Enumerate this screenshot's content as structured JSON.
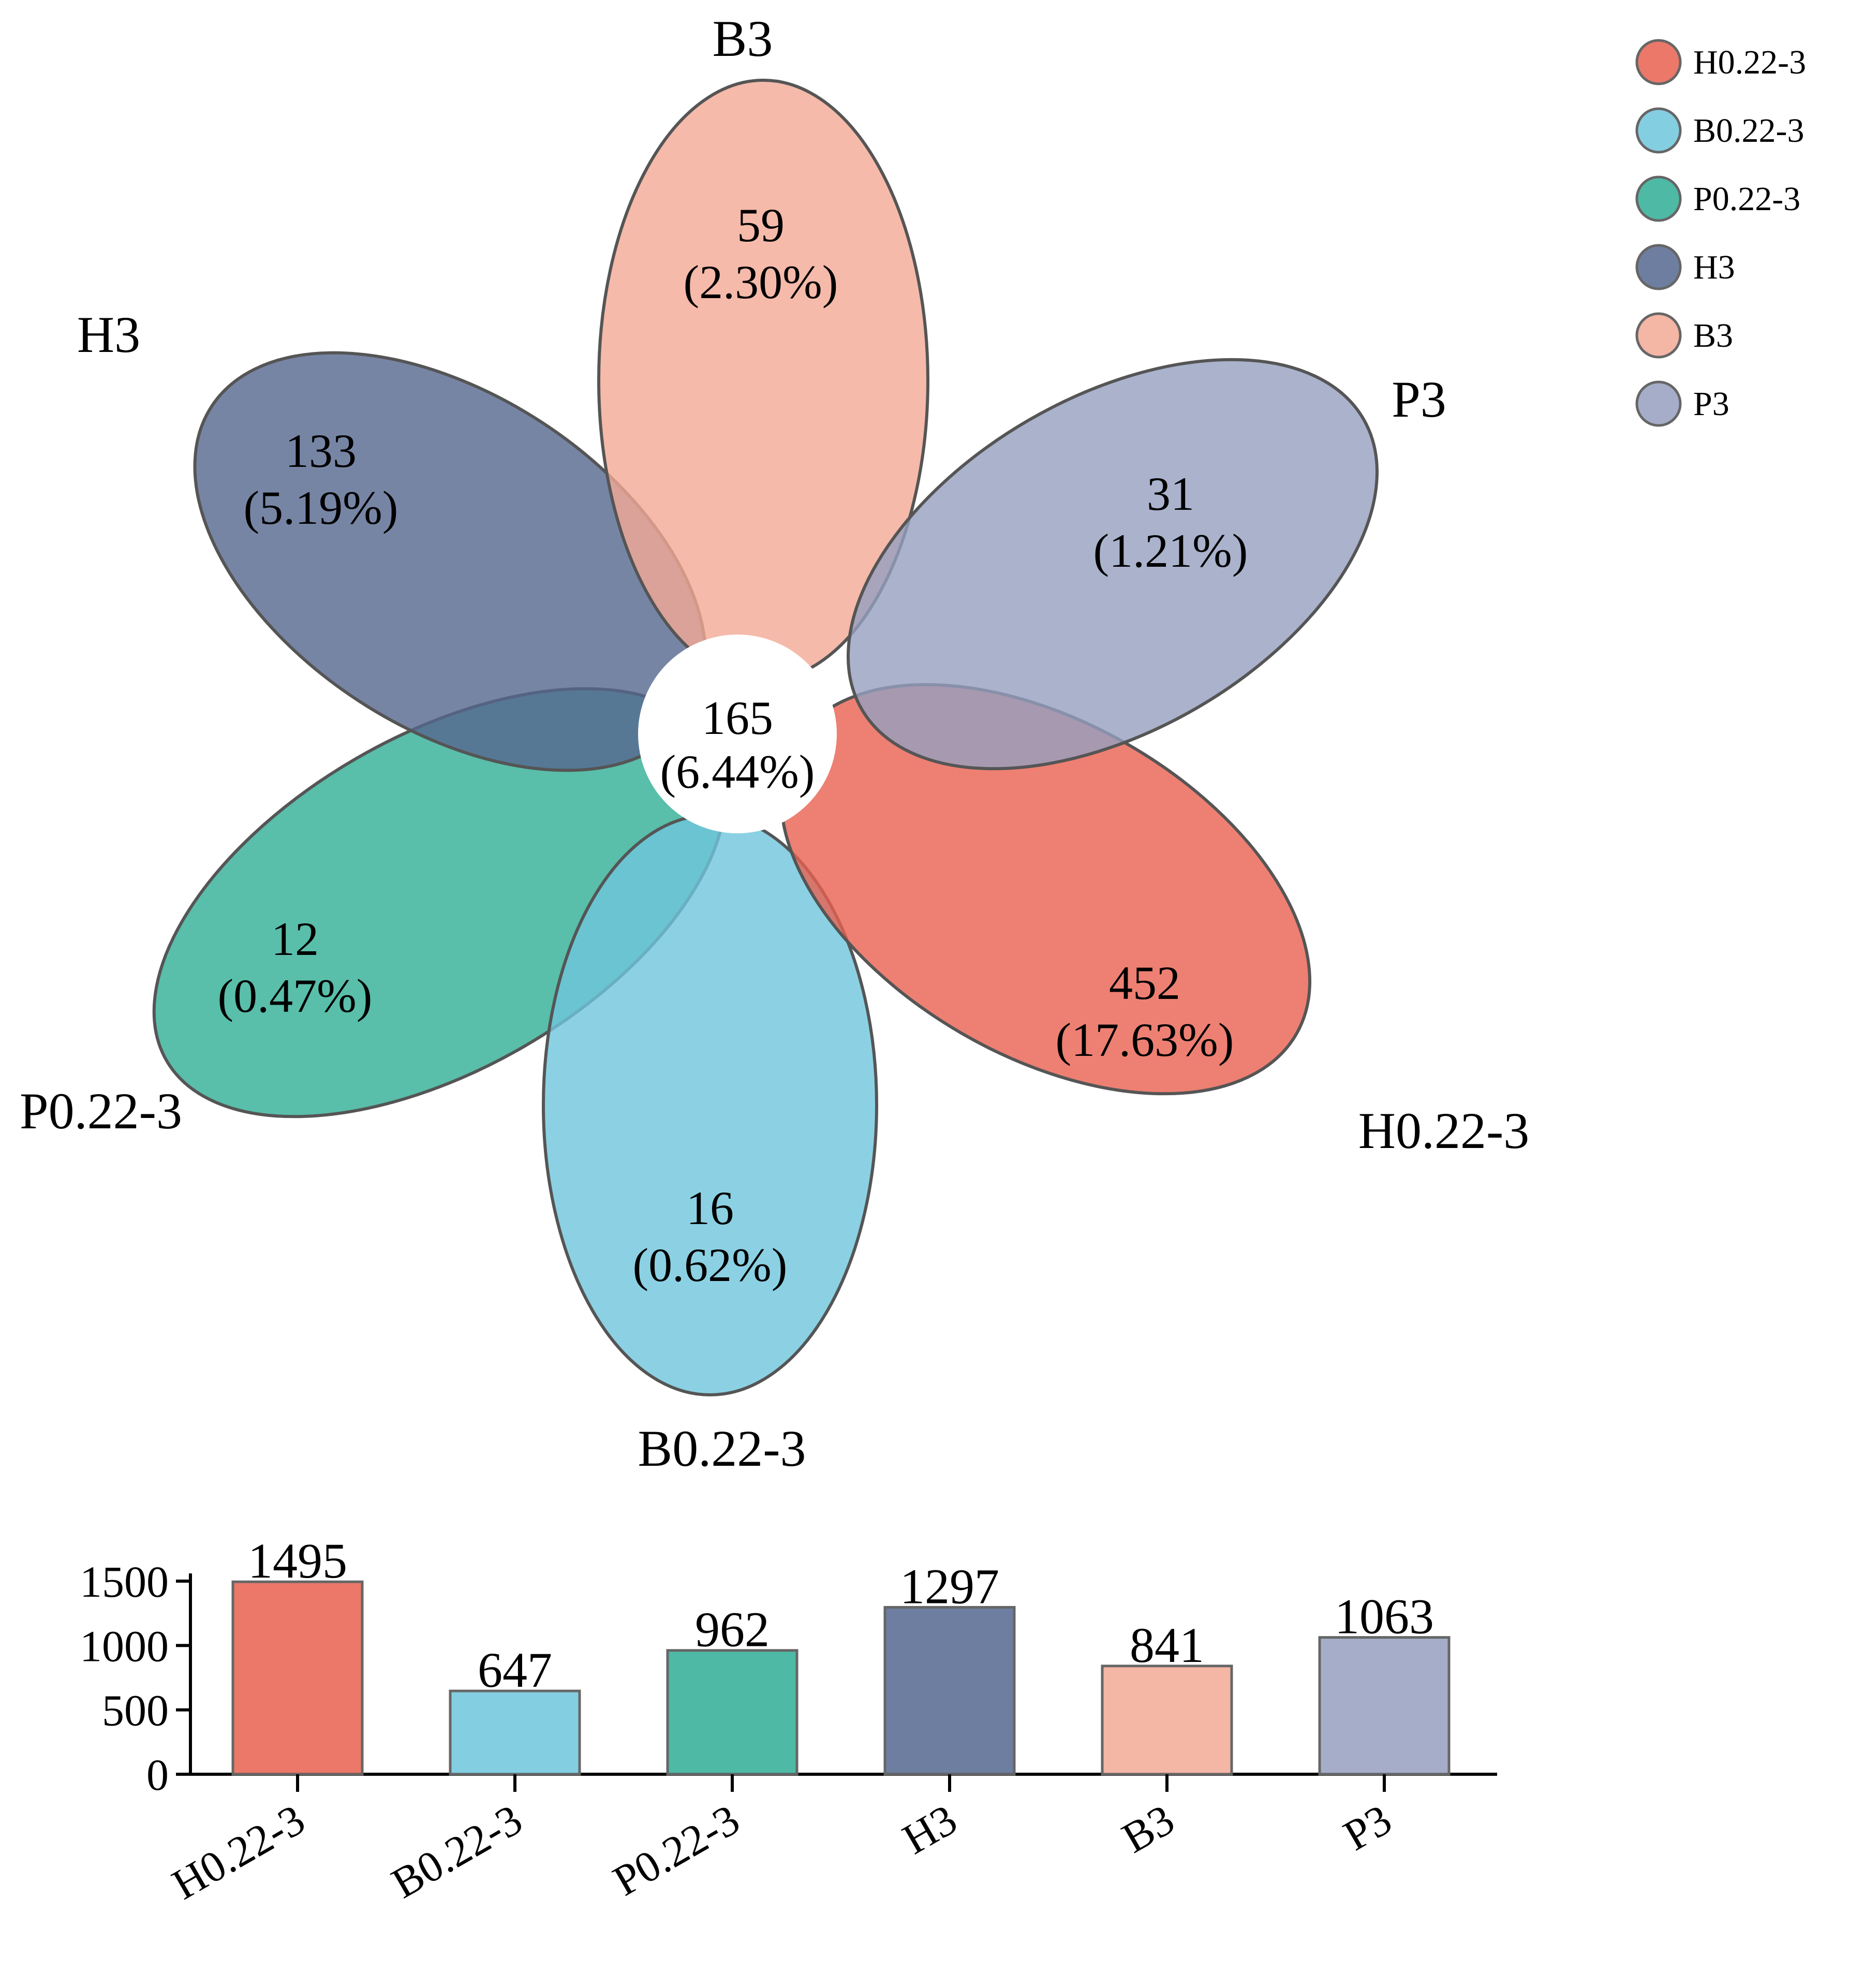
{
  "chart_data": [
    {
      "type": "venn-flower",
      "core": {
        "count": "165",
        "percent": "(6.44%)"
      },
      "sets": [
        {
          "name": "H0.22-3",
          "unique": "452",
          "percent": "(17.63%)",
          "color": "#E8604F"
        },
        {
          "name": "B0.22-3",
          "unique": "16",
          "percent": "(0.62%)",
          "color": "#6EC5DC"
        },
        {
          "name": "P0.22-3",
          "unique": "12",
          "percent": "(0.47%)",
          "color": "#2FAE95"
        },
        {
          "name": "H3",
          "unique": "133",
          "percent": "(5.19%)",
          "color": "#55678F"
        },
        {
          "name": "B3",
          "unique": "59",
          "percent": "(2.30%)",
          "color": "#F2A995"
        },
        {
          "name": "P3",
          "unique": "31",
          "percent": "(1.21%)",
          "color": "#959FBF"
        }
      ],
      "legend": [
        "H0.22-3",
        "B0.22-3",
        "P0.22-3",
        "H3",
        "B3",
        "P3"
      ]
    },
    {
      "type": "bar",
      "categories": [
        "H0.22-3",
        "B0.22-3",
        "P0.22-3",
        "H3",
        "B3",
        "P3"
      ],
      "values": [
        1495,
        647,
        962,
        1297,
        841,
        1063
      ],
      "value_labels": [
        "1495",
        "647",
        "962",
        "1297",
        "841",
        "1063"
      ],
      "yticks": [
        "0",
        "500",
        "1000",
        "1500"
      ],
      "ylim": [
        0,
        1560
      ],
      "colors": [
        "#E8604F",
        "#6EC5DC",
        "#2FAE95",
        "#55678F",
        "#F2A995",
        "#959FBF"
      ]
    }
  ]
}
